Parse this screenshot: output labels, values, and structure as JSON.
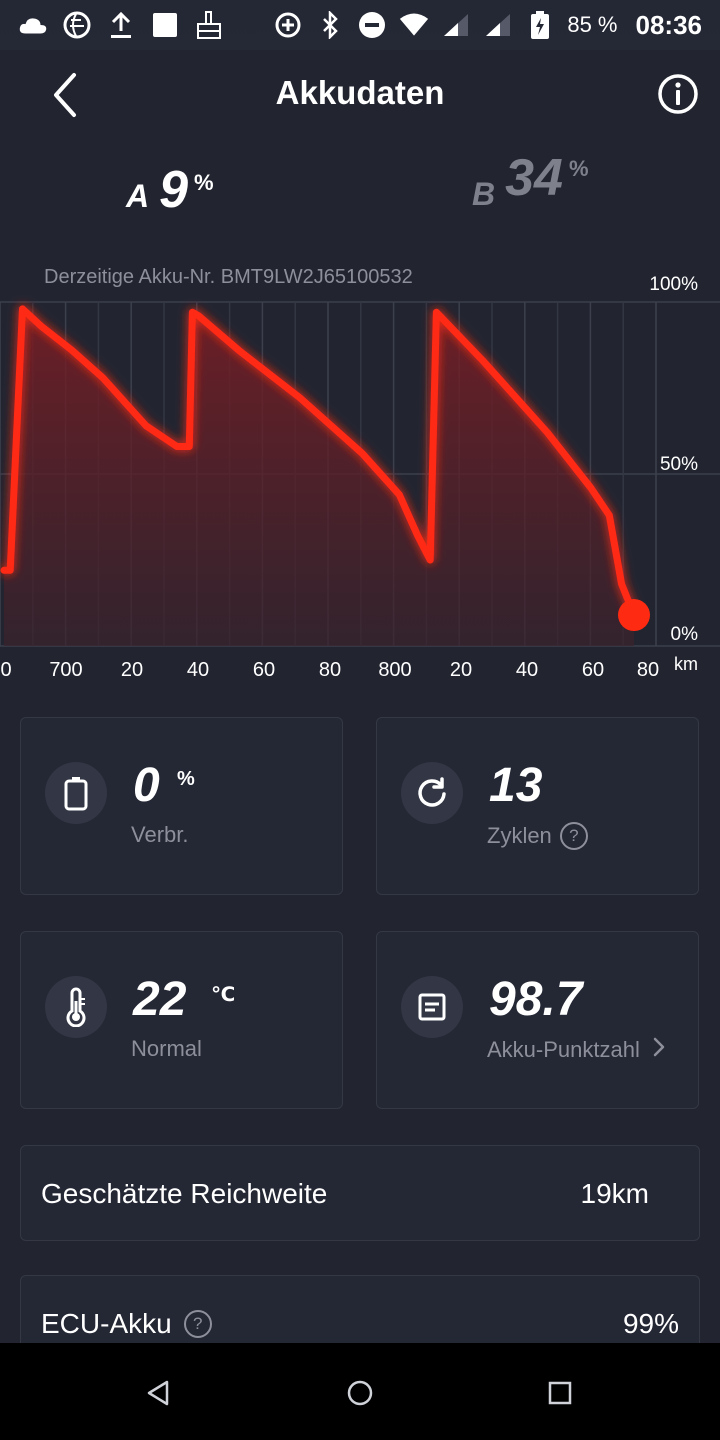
{
  "status_bar": {
    "battery_percent": "85 %",
    "time": "08:36",
    "icons": [
      "cloud-icon",
      "globe-icon",
      "upload-icon",
      "square-icon",
      "broom-icon",
      "data-saver-icon",
      "bluetooth-icon",
      "do-not-disturb-icon",
      "wifi-icon",
      "signal-icon",
      "signal-icon",
      "battery-charging-icon"
    ]
  },
  "header": {
    "title": "Akkudaten",
    "back_icon": "chevron-left-icon",
    "info_icon": "info-icon"
  },
  "battery_a": {
    "letter": "A",
    "value": "9",
    "unit": "%"
  },
  "battery_b": {
    "letter": "B",
    "value": "34",
    "unit": "%"
  },
  "serial": "Derzeitige Akku-Nr. BMT9LW2J65100532",
  "chart_data": {
    "type": "area",
    "title": "",
    "y_ticks": [
      "100%",
      "50%",
      "0%"
    ],
    "ylim": [
      0,
      100
    ],
    "x_tick_labels": [
      "0",
      "700",
      "20",
      "40",
      "60",
      "80",
      "800",
      "20",
      "40",
      "60",
      "80"
    ],
    "x_unit": "km",
    "xlim": [
      680,
      884
    ],
    "x": [
      680,
      682,
      686,
      692,
      702,
      712,
      726,
      736,
      740,
      741,
      743,
      756,
      776,
      796,
      808,
      814,
      818,
      820,
      835,
      856,
      870,
      876,
      880,
      884
    ],
    "y": [
      22,
      22,
      98,
      93,
      86,
      78,
      64,
      58,
      58,
      97,
      96,
      86,
      72,
      56,
      44,
      32,
      25,
      97,
      83,
      62,
      46,
      38,
      18,
      9
    ],
    "color": "#ff2a12",
    "current_point": {
      "x": 884,
      "y": 9
    }
  },
  "stats": {
    "consumption": {
      "value": "0",
      "unit": "%",
      "label": "Verbr.",
      "icon": "battery-icon"
    },
    "cycles": {
      "value": "13",
      "label": "Zyklen",
      "icon": "refresh-icon",
      "help": "?"
    },
    "temperature": {
      "value": "22",
      "unit": "℃",
      "label": "Normal",
      "icon": "thermometer-icon"
    },
    "score": {
      "value": "98.7",
      "label": "Akku-Punktzahl",
      "icon": "document-icon",
      "chevron": "›"
    }
  },
  "range": {
    "label": "Geschätzte Reichweite",
    "value": "19km"
  },
  "ecu": {
    "label": "ECU-Akku",
    "value": "99%",
    "help": "?"
  },
  "navbar": {
    "icons": [
      "back-triangle-icon",
      "home-circle-icon",
      "recents-square-icon"
    ]
  }
}
